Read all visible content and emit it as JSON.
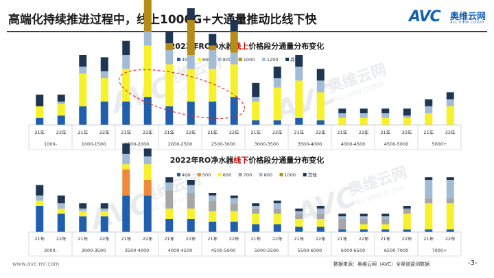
{
  "header": {
    "title": "高端化持续推进过程中，线上1000G+大通量推动比线下快",
    "logo_text": "AVC",
    "logo_cn": "奥维云网",
    "logo_en": "ALL VIEW CLOUD"
  },
  "watermark": {
    "logo_text": "AVC",
    "cn": "奥维云网",
    "en": "ALL VIEW CLOUD"
  },
  "footer": {
    "url": "www.avc-mr.com",
    "source": "数据来源：奥维云网（AVC）全渠道监测数据",
    "page": "-3-"
  },
  "chart_data": [
    {
      "type": "bar",
      "stacked": true,
      "title_parts": [
        "2022年RO净水器",
        "线上",
        "价格段分通量分布变化"
      ],
      "title": "2022年RO净水器线上价格段分通量分布变化",
      "title_highlight_color": "#c00000",
      "legend_position": "top",
      "grid": false,
      "year_labels": [
        "21年",
        "22年"
      ],
      "groups": [
        "1000-",
        "1000-1500",
        "1500-2000",
        "2000-2500",
        "2500-3000",
        "3000-3500",
        "3500-4000",
        "4000-4500",
        "4500-5000",
        "5000+"
      ],
      "ylim": [
        0,
        1
      ],
      "annotation": "dashed ellipse highlighting 1500-2000 to 2500-3000",
      "series": [
        {
          "name": "400",
          "color": "#1f5fad",
          "values": [
            0.03,
            0.04,
            0.08,
            0.1,
            0.1,
            0.12,
            0.08,
            0.1,
            0.1,
            0.12,
            0.02,
            0.02,
            0.03,
            0.02,
            0.0,
            0.0,
            0.0,
            0.0,
            0.0,
            0.0
          ]
        },
        {
          "name": "600",
          "color": "#f7f12a",
          "values": [
            0.05,
            0.05,
            0.14,
            0.1,
            0.14,
            0.22,
            0.18,
            0.14,
            0.14,
            0.14,
            0.08,
            0.14,
            0.16,
            0.12,
            0.03,
            0.03,
            0.03,
            0.03,
            0.05,
            0.08
          ]
        },
        {
          "name": "800",
          "color": "#a3bcd6",
          "values": [
            0.0,
            0.01,
            0.03,
            0.03,
            0.06,
            0.06,
            0.06,
            0.06,
            0.08,
            0.05,
            0.02,
            0.04,
            0.06,
            0.05,
            0.02,
            0.02,
            0.02,
            0.01,
            0.03,
            0.03
          ]
        },
        {
          "name": "1000",
          "color": "#b58c17",
          "values": [
            0.0,
            0.0,
            0.0,
            0.0,
            0.0,
            0.2,
            0.03,
            0.15,
            0.02,
            0.09,
            0.0,
            0.0,
            0.0,
            0.0,
            0.0,
            0.0,
            0.0,
            0.0,
            0.0,
            0.0
          ]
        },
        {
          "name": "1200",
          "color": "#9dc3e6",
          "values": [
            0.0,
            0.0,
            0.0,
            0.0,
            0.0,
            0.0,
            0.0,
            0.0,
            0.0,
            0.0,
            0.0,
            0.0,
            0.0,
            0.0,
            0.0,
            0.0,
            0.0,
            0.0,
            0.0,
            0.0
          ]
        },
        {
          "name": "其他",
          "color": "#1f3652",
          "values": [
            0.05,
            0.03,
            0.05,
            0.06,
            0.06,
            0.06,
            0.05,
            0.05,
            0.05,
            0.05,
            0.06,
            0.05,
            0.05,
            0.05,
            0.02,
            0.02,
            0.02,
            0.03,
            0.03,
            0.03
          ]
        }
      ]
    },
    {
      "type": "bar",
      "stacked": true,
      "title_parts": [
        "2022年RO净水器",
        "线下",
        "价格段分通量分布变化"
      ],
      "title": "2022年RO净水器线下价格段分通量分布变化",
      "title_highlight_color": "#c00000",
      "legend_position": "top",
      "grid": false,
      "year_labels": [
        "21年",
        "22年"
      ],
      "groups": [
        "3000-",
        "3000-3500",
        "3500-4000",
        "4000-4500",
        "4500-5000",
        "5000-5500",
        "5500-6000",
        "6000-6500",
        "6500-7000",
        "7000+"
      ],
      "ylim": [
        0,
        1
      ],
      "series": [
        {
          "name": "400",
          "color": "#1f5fad",
          "values": [
            0.1,
            0.07,
            0.06,
            0.06,
            0.14,
            0.14,
            0.05,
            0.05,
            0.04,
            0.04,
            0.03,
            0.03,
            0.02,
            0.02,
            0.01,
            0.01,
            0.01,
            0.01,
            0.01,
            0.01
          ]
        },
        {
          "name": "500",
          "color": "#ee8a3b",
          "values": [
            0.0,
            0.0,
            0.0,
            0.0,
            0.1,
            0.06,
            0.0,
            0.0,
            0.0,
            0.0,
            0.0,
            0.0,
            0.0,
            0.0,
            0.0,
            0.0,
            0.0,
            0.0,
            0.0,
            0.0
          ]
        },
        {
          "name": "600",
          "color": "#f7f12a",
          "values": [
            0.02,
            0.02,
            0.02,
            0.02,
            0.02,
            0.06,
            0.04,
            0.04,
            0.04,
            0.04,
            0.04,
            0.04,
            0.03,
            0.03,
            0.0,
            0.02,
            0.02,
            0.06,
            0.1,
            0.1
          ]
        },
        {
          "name": "700",
          "color": "#a6a6a6",
          "values": [
            0.0,
            0.0,
            0.0,
            0.0,
            0.0,
            0.0,
            0.07,
            0.06,
            0.04,
            0.03,
            0.02,
            0.02,
            0.02,
            0.02,
            0.04,
            0.02,
            0.02,
            0.02,
            0.02,
            0.02
          ]
        },
        {
          "name": "800",
          "color": "#a3bcd6",
          "values": [
            0.02,
            0.02,
            0.01,
            0.01,
            0.04,
            0.03,
            0.03,
            0.03,
            0.02,
            0.02,
            0.01,
            0.02,
            0.01,
            0.02,
            0.01,
            0.01,
            0.01,
            0.0,
            0.07,
            0.07
          ]
        },
        {
          "name": "1000",
          "color": "#b58c17",
          "values": [
            0.0,
            0.0,
            0.0,
            0.0,
            0.0,
            0.0,
            0.0,
            0.0,
            0.0,
            0.0,
            0.0,
            0.0,
            0.0,
            0.0,
            0.0,
            0.0,
            0.0,
            0.0,
            0.0,
            0.0
          ]
        },
        {
          "name": "其他",
          "color": "#1f3652",
          "values": [
            0.04,
            0.03,
            0.02,
            0.02,
            0.04,
            0.03,
            0.02,
            0.02,
            0.01,
            0.01,
            0.01,
            0.01,
            0.01,
            0.01,
            0.01,
            0.01,
            0.01,
            0.01,
            0.01,
            0.01
          ]
        }
      ]
    }
  ]
}
